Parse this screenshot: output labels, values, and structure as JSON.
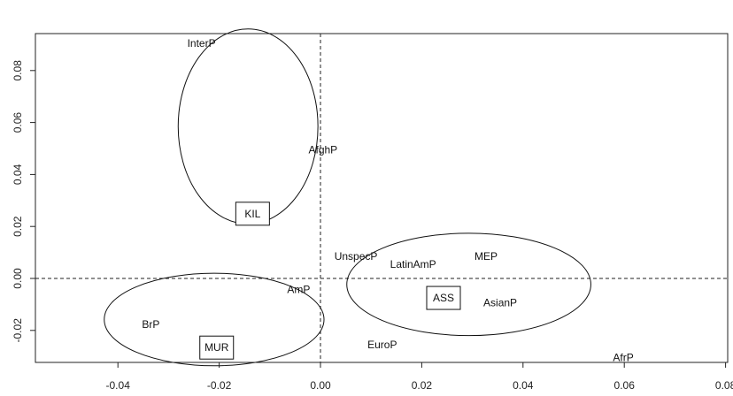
{
  "chart_data": {
    "type": "scatter",
    "title": "",
    "xlabel": "",
    "ylabel": "",
    "xlim": [
      -0.057,
      0.081
    ],
    "ylim": [
      -0.032,
      0.094
    ],
    "xticks": [
      "-0.04",
      "-0.02",
      "0.00",
      "0.02",
      "0.04",
      "0.06",
      "0.08"
    ],
    "xtick_values": [
      -0.04,
      -0.02,
      0.0,
      0.02,
      0.04,
      0.06,
      0.08
    ],
    "yticks": [
      "-0.02",
      "0.00",
      "0.02",
      "0.04",
      "0.06",
      "0.08"
    ],
    "ytick_values": [
      -0.02,
      0.0,
      0.02,
      0.04,
      0.06,
      0.08
    ],
    "reference_lines": {
      "x": 0.0,
      "y": 0.0,
      "style": "dashed"
    },
    "points": [
      {
        "label": "InterP",
        "x": -0.0235,
        "y": 0.0905
      },
      {
        "label": "AfghP",
        "x": 0.0005,
        "y": 0.0495
      },
      {
        "label": "UnspecP",
        "x": 0.007,
        "y": 0.0085
      },
      {
        "label": "LatinAmP",
        "x": 0.0183,
        "y": 0.0055
      },
      {
        "label": "MEP",
        "x": 0.0327,
        "y": 0.0085
      },
      {
        "label": "AmP",
        "x": -0.0043,
        "y": -0.0043
      },
      {
        "label": "AsianP",
        "x": 0.0355,
        "y": -0.0093
      },
      {
        "label": "BrP",
        "x": -0.0335,
        "y": -0.0177
      },
      {
        "label": "EuroP",
        "x": 0.0122,
        "y": -0.0255
      },
      {
        "label": "AfrP",
        "x": 0.0598,
        "y": -0.0305
      }
    ],
    "clusters": [
      {
        "label": "KIL",
        "label_x": -0.0134,
        "label_y": 0.0249,
        "center": [
          -0.0143,
          0.0585
        ],
        "radius": [
          0.0138,
          0.0375
        ]
      },
      {
        "label": "MUR",
        "label_x": -0.0205,
        "label_y": -0.0266,
        "center": [
          -0.021,
          -0.0158
        ],
        "radius": [
          0.0217,
          0.0178
        ]
      },
      {
        "label": "ASS",
        "label_x": 0.0243,
        "label_y": -0.0075,
        "center": [
          0.0293,
          -0.0023
        ],
        "radius": [
          0.0241,
          0.0197
        ]
      }
    ]
  }
}
